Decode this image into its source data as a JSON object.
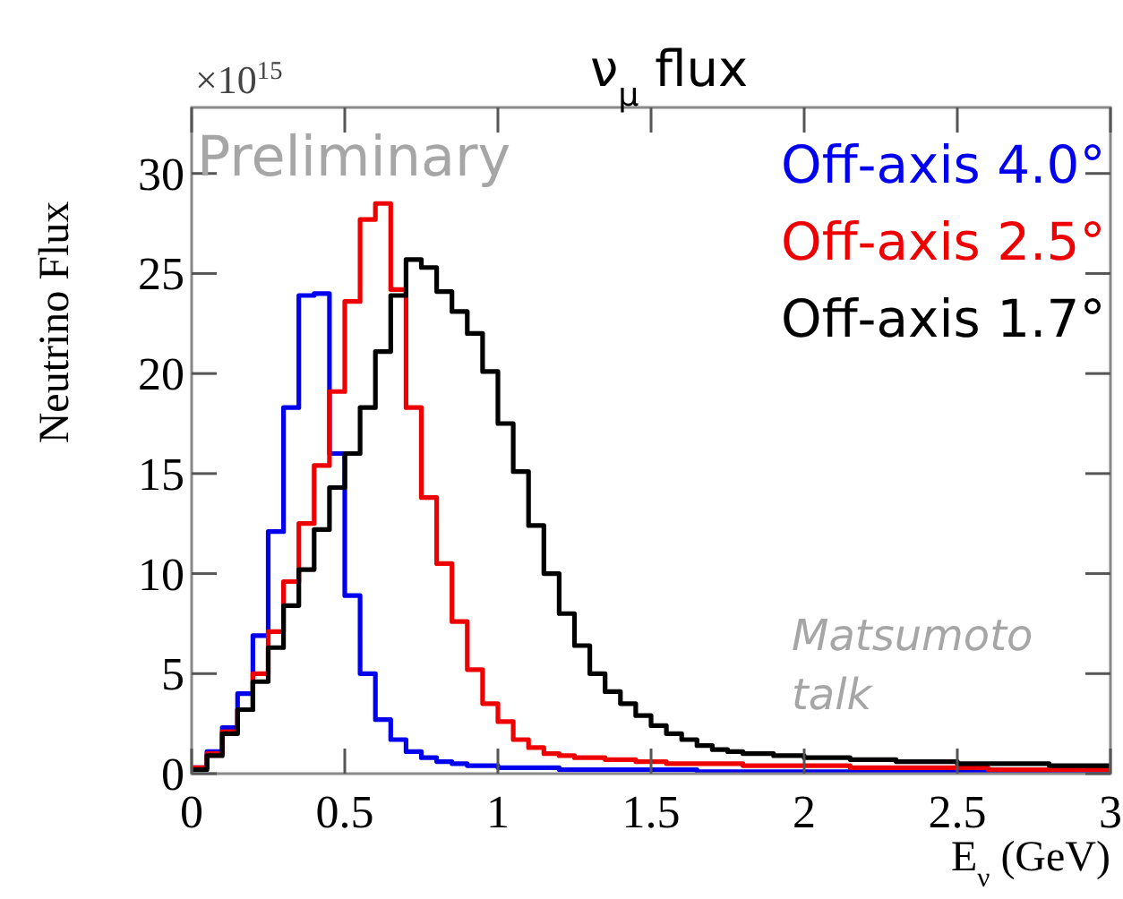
{
  "chart_data": {
    "type": "histogram",
    "title": "ν$_{μ}$ flux",
    "xlabel": "E$_{ν}$ (GeV)",
    "ylabel": "Neutrino Flux",
    "annotations": [
      "×10$^{15}$",
      "Preliminary",
      "Matsumoto talk"
    ],
    "bins": [
      0,
      0.05,
      0.1,
      0.15,
      0.2,
      0.25,
      0.3,
      0.35,
      0.4,
      0.45,
      0.5,
      0.55,
      0.6,
      0.65,
      0.7,
      0.75,
      0.8,
      0.85,
      0.9,
      0.95,
      1,
      1.05,
      1.1,
      1.15,
      1.2,
      1.25,
      1.3,
      1.35,
      1.4,
      1.45,
      1.5,
      1.55,
      1.6,
      1.65,
      1.7,
      1.75,
      1.8,
      1.85,
      1.9,
      1.95,
      2,
      2.05,
      2.1,
      2.15,
      2.2,
      2.25,
      2.3,
      2.35,
      2.4,
      2.45,
      2.5,
      2.55,
      2.6,
      2.65,
      2.7,
      2.75,
      2.8,
      2.85,
      2.9,
      2.95,
      3
    ],
    "series": [
      {
        "name": "Off-axis 4.0°",
        "color": "#0000ee",
        "values": [
          0.3,
          1.1,
          2.3,
          4.0,
          6.9,
          12.1,
          18.3,
          23.9,
          24.0,
          16.0,
          8.9,
          5.0,
          2.7,
          1.7,
          1.1,
          0.8,
          0.6,
          0.5,
          0.4,
          0.4,
          0.3,
          0.3,
          0.3,
          0.3,
          0.2,
          0.2,
          0.2,
          0.2,
          0.2,
          0.2,
          0.2,
          0.2,
          0.2,
          0.1,
          0.1,
          0.1,
          0.1,
          0.1,
          0.1,
          0.1,
          0.1,
          0.1,
          0.1,
          0.1,
          0.1,
          0.1,
          0.1,
          0.1,
          0.1,
          0.1,
          0.1,
          0.1,
          0.1,
          0.1,
          0.1,
          0.1,
          0.1,
          0.1,
          0.1,
          0.1
        ]
      },
      {
        "name": "Off-axis 2.5°",
        "color": "#ee0000",
        "values": [
          0.3,
          1.0,
          2.1,
          3.2,
          5.0,
          7.1,
          9.6,
          12.5,
          15.4,
          19.1,
          23.6,
          27.7,
          28.5,
          24.2,
          18.3,
          13.8,
          10.5,
          7.6,
          5.2,
          3.5,
          2.6,
          1.7,
          1.3,
          1.0,
          0.9,
          0.8,
          0.8,
          0.7,
          0.7,
          0.6,
          0.6,
          0.5,
          0.5,
          0.5,
          0.5,
          0.5,
          0.4,
          0.4,
          0.4,
          0.4,
          0.4,
          0.4,
          0.4,
          0.3,
          0.3,
          0.3,
          0.3,
          0.3,
          0.3,
          0.3,
          0.3,
          0.3,
          0.2,
          0.2,
          0.2,
          0.2,
          0.2,
          0.2,
          0.2,
          0.2
        ]
      },
      {
        "name": "Off-axis 1.7°",
        "color": "#000000",
        "values": [
          0.2,
          0.9,
          2.0,
          3.2,
          4.6,
          6.3,
          8.4,
          10.2,
          12.2,
          14.3,
          16.0,
          18.3,
          21.1,
          23.9,
          25.7,
          25.3,
          24.1,
          23.1,
          22.0,
          20.1,
          17.5,
          15.1,
          12.4,
          10.0,
          8.0,
          6.4,
          5.0,
          4.1,
          3.5,
          2.9,
          2.4,
          2.0,
          1.7,
          1.4,
          1.2,
          1.1,
          1.0,
          1.0,
          0.9,
          0.9,
          0.8,
          0.8,
          0.8,
          0.7,
          0.7,
          0.7,
          0.6,
          0.6,
          0.6,
          0.6,
          0.5,
          0.5,
          0.5,
          0.5,
          0.5,
          0.5,
          0.4,
          0.4,
          0.4,
          0.4
        ]
      }
    ],
    "xlim": [
      0,
      3
    ],
    "xticks": [
      0,
      0.5,
      1,
      1.5,
      2,
      2.5,
      3
    ],
    "ylim": [
      0,
      33.3
    ],
    "yticks": [
      0,
      5,
      10,
      15,
      20,
      25,
      30
    ],
    "legend": "top right"
  }
}
